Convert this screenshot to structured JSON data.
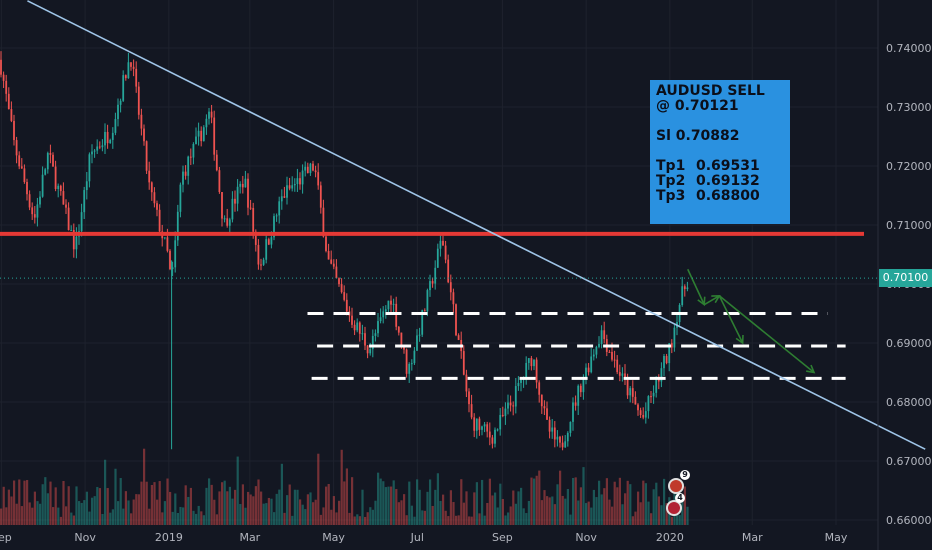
{
  "chart_data": {
    "type": "candlestick",
    "symbol_note": "AUDUSD",
    "x_ticks": [
      "Sep",
      "Nov",
      "2019",
      "Mar",
      "May",
      "Jul",
      "Sep",
      "Nov",
      "2020",
      "Mar",
      "May"
    ],
    "y_ticks": [
      "0.74000",
      "0.73000",
      "0.72000",
      "0.71000",
      "0.70000",
      "0.69000",
      "0.68000",
      "0.67000",
      "0.66000"
    ],
    "ylim": [
      0.6595,
      0.7475
    ],
    "price_path": [
      {
        "x": "2018-08-31",
        "y": 0.738
      },
      {
        "x": "2018-09-10",
        "y": 0.724
      },
      {
        "x": "2018-09-25",
        "y": 0.711
      },
      {
        "x": "2018-10-05",
        "y": 0.722
      },
      {
        "x": "2018-10-25",
        "y": 0.706
      },
      {
        "x": "2018-11-05",
        "y": 0.722
      },
      {
        "x": "2018-11-20",
        "y": 0.726
      },
      {
        "x": "2018-12-04",
        "y": 0.739
      },
      {
        "x": "2018-12-18",
        "y": 0.716
      },
      {
        "x": "2018-12-31",
        "y": 0.705
      },
      {
        "x": "2019-01-03",
        "y": 0.7
      },
      {
        "x": "2019-01-10",
        "y": 0.718
      },
      {
        "x": "2019-01-31",
        "y": 0.729
      },
      {
        "x": "2019-02-10",
        "y": 0.71
      },
      {
        "x": "2019-02-25",
        "y": 0.718
      },
      {
        "x": "2019-03-08",
        "y": 0.703
      },
      {
        "x": "2019-03-25",
        "y": 0.715
      },
      {
        "x": "2019-04-17",
        "y": 0.72
      },
      {
        "x": "2019-04-27",
        "y": 0.704
      },
      {
        "x": "2019-05-12",
        "y": 0.695
      },
      {
        "x": "2019-05-27",
        "y": 0.689
      },
      {
        "x": "2019-06-12",
        "y": 0.698
      },
      {
        "x": "2019-06-24",
        "y": 0.685
      },
      {
        "x": "2019-07-10",
        "y": 0.699
      },
      {
        "x": "2019-07-19",
        "y": 0.708
      },
      {
        "x": "2019-07-29",
        "y": 0.693
      },
      {
        "x": "2019-08-09",
        "y": 0.677
      },
      {
        "x": "2019-08-24",
        "y": 0.674
      },
      {
        "x": "2019-09-08",
        "y": 0.68
      },
      {
        "x": "2019-09-23",
        "y": 0.688
      },
      {
        "x": "2019-10-03",
        "y": 0.676
      },
      {
        "x": "2019-10-13",
        "y": 0.672
      },
      {
        "x": "2019-10-28",
        "y": 0.683
      },
      {
        "x": "2019-11-12",
        "y": 0.692
      },
      {
        "x": "2019-11-27",
        "y": 0.684
      },
      {
        "x": "2019-12-12",
        "y": 0.677
      },
      {
        "x": "2019-12-22",
        "y": 0.683
      },
      {
        "x": "2020-01-01",
        "y": 0.689
      },
      {
        "x": "2020-01-07",
        "y": 0.696
      },
      {
        "x": "2020-01-14",
        "y": 0.701
      }
    ],
    "downtrend_line": {
      "start": {
        "x": "2018-09-20",
        "y": 0.748
      },
      "end": {
        "x": "2020-07-05",
        "y": 0.672
      }
    },
    "resistance_line": {
      "y": 0.7085
    },
    "support_levels": [
      0.695,
      0.6895,
      0.684
    ],
    "projection_arrows": [
      {
        "x": "2020-01-14",
        "y": 0.7025
      },
      {
        "x": "2020-01-26",
        "y": 0.6965
      },
      {
        "x": "2020-02-06",
        "y": 0.698
      },
      {
        "x": "2020-02-23",
        "y": 0.69
      },
      {
        "x": "2020-02-06",
        "y": 0.698
      },
      {
        "x": "2020-04-15",
        "y": 0.685
      }
    ],
    "current_price": "0.70100",
    "colors": {
      "background": "#131722",
      "up": "#26a69a",
      "down": "#ef5350",
      "trendline": "#9fc5e8",
      "resistance": "#e53935",
      "support": "#ffffff",
      "arrows": "#2e7d32",
      "price_tag": "#26a69a"
    }
  },
  "annotation": {
    "title": "AUDUSD SELL",
    "entry": "@ 0.70121",
    "sl": "Sl 0.70882",
    "tp1_label": "Tp1",
    "tp1_value": "0.69531",
    "tp2_label": "Tp2",
    "tp2_value": "0.69132",
    "tp3_label": "Tp3",
    "tp3_value": "0.68800"
  },
  "badges": {
    "top": "9",
    "bottom": "4"
  }
}
